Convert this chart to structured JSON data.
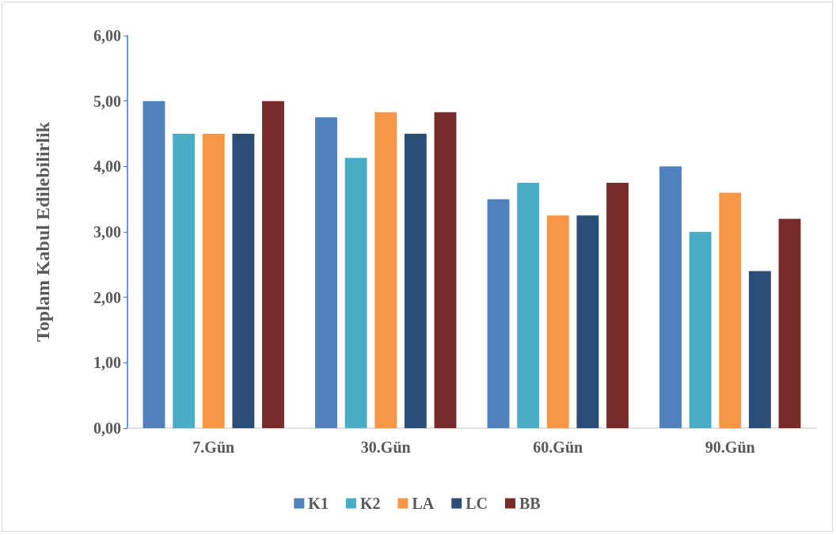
{
  "chart_data": {
    "type": "bar",
    "ylabel": "Toplam Kabul Edilebilirlik",
    "categories": [
      "7.Gün",
      "30.Gün",
      "60.Gün",
      "90.Gün"
    ],
    "series": [
      {
        "name": "K1",
        "color": "#4f81bd",
        "values": [
          5.0,
          4.75,
          3.5,
          4.0
        ]
      },
      {
        "name": "K2",
        "color": "#4bacc6",
        "values": [
          4.5,
          4.13,
          3.75,
          3.0
        ]
      },
      {
        "name": "LA",
        "color": "#f79646",
        "values": [
          4.5,
          4.83,
          3.25,
          3.6
        ]
      },
      {
        "name": "LC",
        "color": "#2c4d75",
        "values": [
          4.5,
          4.5,
          3.25,
          2.4
        ]
      },
      {
        "name": "BB",
        "color": "#772c2a",
        "values": [
          5.0,
          4.83,
          3.75,
          3.2
        ]
      }
    ],
    "ylim": [
      0,
      6
    ],
    "yticks": [
      {
        "value": 0,
        "label": "0,00"
      },
      {
        "value": 1,
        "label": "1,00"
      },
      {
        "value": 2,
        "label": "2,00"
      },
      {
        "value": 3,
        "label": "3,00"
      },
      {
        "value": 4,
        "label": "4,00"
      },
      {
        "value": 5,
        "label": "5,00"
      },
      {
        "value": 6,
        "label": "6,00"
      }
    ],
    "grid": false,
    "legend": "bottom"
  }
}
